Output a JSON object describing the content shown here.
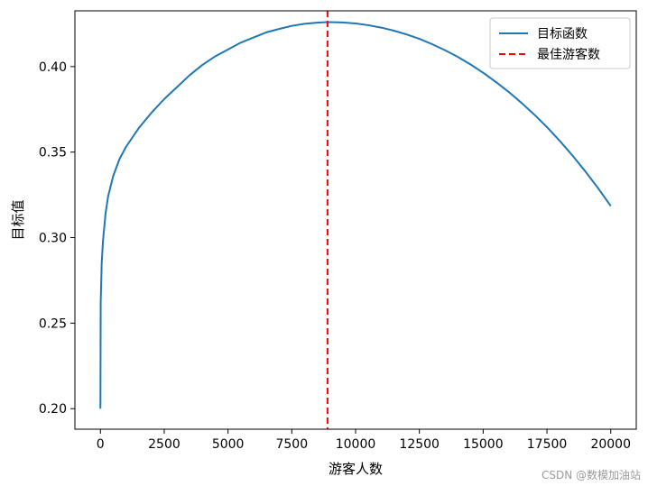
{
  "chart_data": {
    "type": "line",
    "title": "",
    "xlabel": "游客人数",
    "ylabel": "目标值",
    "xlim": [
      -1000,
      21000
    ],
    "ylim": [
      0.188,
      0.4326
    ],
    "xticks": [
      0,
      2500,
      5000,
      7500,
      10000,
      12500,
      15000,
      17500,
      20000
    ],
    "yticks": [
      0.2,
      0.25,
      0.3,
      0.35,
      0.4
    ],
    "ytick_labels": [
      "0.20",
      "0.25",
      "0.30",
      "0.35",
      "0.40"
    ],
    "grid": false,
    "legend_position": "top-right",
    "series": [
      {
        "name": "目标函数",
        "color": "#1f77b4",
        "style": "solid",
        "x": [
          0,
          10,
          50,
          100,
          200,
          300,
          500,
          750,
          1000,
          1500,
          2000,
          2500,
          3000,
          3500,
          4000,
          4500,
          5000,
          5500,
          6000,
          6500,
          7000,
          7500,
          8000,
          8500,
          8900,
          9500,
          10000,
          10500,
          11000,
          11500,
          12000,
          12500,
          13000,
          13500,
          14000,
          14500,
          15000,
          15500,
          16000,
          16500,
          17000,
          17500,
          18000,
          18500,
          19000,
          19500,
          20000
        ],
        "y": [
          0.2,
          0.262,
          0.285,
          0.298,
          0.314,
          0.324,
          0.336,
          0.346,
          0.353,
          0.364,
          0.373,
          0.381,
          0.388,
          0.395,
          0.401,
          0.406,
          0.41,
          0.414,
          0.417,
          0.42,
          0.422,
          0.4238,
          0.425,
          0.4257,
          0.426,
          0.4258,
          0.4252,
          0.4242,
          0.4228,
          0.421,
          0.4188,
          0.4162,
          0.4131,
          0.4096,
          0.4057,
          0.4013,
          0.3964,
          0.391,
          0.3852,
          0.3788,
          0.372,
          0.3646,
          0.3566,
          0.348,
          0.3388,
          0.329,
          0.3185
        ]
      },
      {
        "name": "最佳游客数",
        "color": "#ff0000",
        "style": "dashed",
        "type": "vline",
        "x": 8900
      }
    ]
  },
  "watermark": "CSDN @数模加油站"
}
